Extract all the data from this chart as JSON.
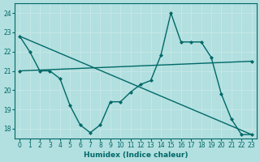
{
  "bg_color": "#b2dfdf",
  "grid_color": "#c8e8e8",
  "line_color": "#006868",
  "xlim": [
    -0.5,
    23.5
  ],
  "ylim": [
    17.5,
    24.5
  ],
  "yticks": [
    18,
    19,
    20,
    21,
    22,
    23,
    24
  ],
  "xticks": [
    0,
    1,
    2,
    3,
    4,
    5,
    6,
    7,
    8,
    9,
    10,
    11,
    12,
    13,
    14,
    15,
    16,
    17,
    18,
    19,
    20,
    21,
    22,
    23
  ],
  "xlabel": "Humidex (Indice chaleur)",
  "series": [
    {
      "x": [
        0,
        1,
        2,
        3,
        4,
        5,
        6,
        7,
        8,
        9,
        10,
        11,
        12,
        13,
        14,
        15,
        16,
        17,
        18,
        19,
        20,
        21,
        22,
        23
      ],
      "y": [
        22.8,
        22.0,
        21.0,
        21.0,
        20.6,
        19.2,
        18.2,
        17.8,
        18.2,
        19.4,
        19.4,
        19.9,
        20.3,
        20.5,
        21.8,
        24.0,
        22.5,
        22.5,
        22.5,
        21.7,
        19.8,
        18.5,
        17.7,
        17.7
      ],
      "marker": "D",
      "lw": 1.0
    },
    {
      "x": [
        0,
        23
      ],
      "y": [
        21.0,
        21.5
      ],
      "marker": "D",
      "lw": 1.0
    },
    {
      "x": [
        0,
        23
      ],
      "y": [
        22.8,
        17.7
      ],
      "marker": null,
      "lw": 1.0
    }
  ]
}
